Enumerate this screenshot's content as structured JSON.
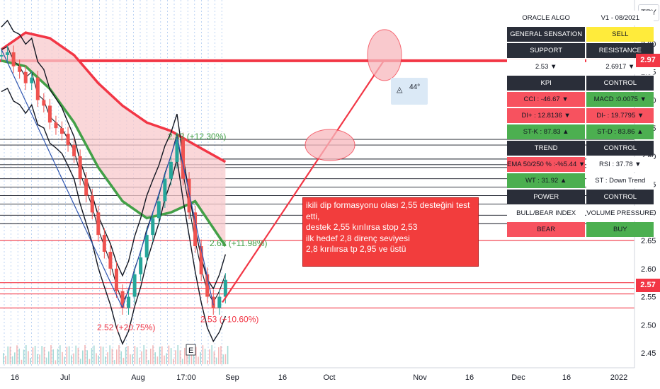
{
  "chart_data": {
    "type": "line",
    "symbol_currency": "TRY",
    "x_ticks": [
      "16",
      "Jul",
      "Aug",
      "17:00",
      "Sep",
      "16",
      "Oct",
      "Nov",
      "16",
      "Dec",
      "16",
      "2022"
    ],
    "y_ticks": [
      "3.00",
      "2.95",
      "2.90",
      "2.85",
      "2.80",
      "2.75",
      "2.70",
      "2.65",
      "2.60",
      "2.55",
      "2.50",
      "2.45"
    ],
    "ylim": [
      2.42,
      3.05
    ],
    "price_labels": [
      {
        "value": 2.97,
        "text": "2.97"
      },
      {
        "value": 2.57,
        "text": "2.57"
      }
    ],
    "horizontal_levels_red": [
      2.97,
      2.65,
      2.575,
      2.565,
      2.555,
      2.53
    ],
    "horizontal_levels_black": [
      2.83,
      2.82,
      2.795,
      2.785,
      2.78,
      2.76,
      2.745,
      2.73,
      2.715,
      2.695,
      2.68
    ],
    "price_series": [
      [
        0,
        2.98
      ],
      [
        1,
        2.985
      ],
      [
        2,
        2.96
      ],
      [
        3,
        2.95
      ],
      [
        4,
        2.93
      ],
      [
        5,
        2.94
      ],
      [
        6,
        2.9
      ],
      [
        7,
        2.89
      ],
      [
        8,
        2.86
      ],
      [
        9,
        2.85
      ],
      [
        10,
        2.84
      ],
      [
        11,
        2.82
      ],
      [
        12,
        2.8
      ],
      [
        13,
        2.76
      ],
      [
        14,
        2.73
      ],
      [
        15,
        2.7
      ],
      [
        16,
        2.66
      ],
      [
        17,
        2.63
      ],
      [
        18,
        2.6
      ],
      [
        19,
        2.56
      ],
      [
        20,
        2.53
      ],
      [
        21,
        2.55
      ],
      [
        22,
        2.59
      ],
      [
        23,
        2.62
      ],
      [
        24,
        2.66
      ],
      [
        25,
        2.69
      ],
      [
        26,
        2.72
      ],
      [
        27,
        2.76
      ],
      [
        28,
        2.79
      ],
      [
        29,
        2.83
      ],
      [
        30,
        2.76
      ],
      [
        31,
        2.7
      ],
      [
        32,
        2.64
      ],
      [
        33,
        2.59
      ],
      [
        34,
        2.55
      ],
      [
        35,
        2.53
      ],
      [
        36,
        2.55
      ],
      [
        37,
        2.58
      ]
    ],
    "annotations": [
      {
        "text": "2.83 (+12.30%)",
        "value": 2.83
      },
      {
        "text": "2.63 (+11.98%)",
        "value": 2.64
      },
      {
        "text": "2.52 (+20.75%)",
        "value": 2.49
      },
      {
        "text": "2.53 (+10.60%)",
        "value": 2.505
      }
    ],
    "angle_label": "44°",
    "event_marker": "E"
  },
  "oracle_table": {
    "rows": [
      [
        {
          "text": "ORACLE ALGO",
          "style": "white"
        },
        {
          "text": "V1 - 08/2021",
          "style": "white"
        }
      ],
      [
        {
          "text": "GENERAL SENSATION",
          "style": "dark"
        },
        {
          "text": "SELL",
          "style": "yellow"
        }
      ],
      [
        {
          "text": "SUPPORT",
          "style": "dark"
        },
        {
          "text": "RESISTANCE",
          "style": "dark"
        }
      ],
      [
        {
          "text": "2.53 ▼",
          "style": "white"
        },
        {
          "text": "2.6917 ▼",
          "style": "white"
        }
      ],
      [
        {
          "text": "KPI",
          "style": "dark"
        },
        {
          "text": "CONTROL",
          "style": "dark"
        }
      ],
      [
        {
          "text": "CCI : -46.67 ▼",
          "style": "red"
        },
        {
          "text": "MACD :0.0075 ▼",
          "style": "green"
        }
      ],
      [
        {
          "text": "DI+ : 12.8136 ▼",
          "style": "red"
        },
        {
          "text": "DI- : 19.7795 ▼",
          "style": "red"
        }
      ],
      [
        {
          "text": "ST-K : 87.83 ▲",
          "style": "green"
        },
        {
          "text": "ST-D : 83.86 ▲",
          "style": "green"
        }
      ],
      [
        {
          "text": "TREND",
          "style": "dark"
        },
        {
          "text": "CONTROL",
          "style": "dark"
        }
      ],
      [
        {
          "text": "EMA 50/250 % :-%5.44 ▼",
          "style": "red"
        },
        {
          "text": "RSI : 37.78 ▼",
          "style": "white"
        }
      ],
      [
        {
          "text": "WT : 31.92 ▲",
          "style": "green"
        },
        {
          "text": "ST : Down Trend",
          "style": "white"
        }
      ],
      [
        {
          "text": "POWER",
          "style": "dark"
        },
        {
          "text": "CONTROL",
          "style": "dark"
        }
      ],
      [
        {
          "text": "BULL/BEAR INDEX",
          "style": "white"
        },
        {
          "text": "VOLUME PRESSURE",
          "style": "white"
        }
      ],
      [
        {
          "text": "BEAR",
          "style": "red"
        },
        {
          "text": "BUY",
          "style": "green"
        }
      ]
    ]
  },
  "note_lines": [
    "ikili dip formasyonu olası 2,55 desteğini test etti,",
    "destek 2,55 kırılırsa stop 2,53",
    "ilk hedef 2,8 direnç seviyesi",
    "2,8 kırılırsa tp 2,95 ve üstü"
  ],
  "colors": {
    "red": "#f23645",
    "green": "#4caf50",
    "pink_fill": "#f8c9cc",
    "dark": "#2a2e39",
    "yellow": "#ffeb3b",
    "blue_line": "#2f56b0"
  }
}
